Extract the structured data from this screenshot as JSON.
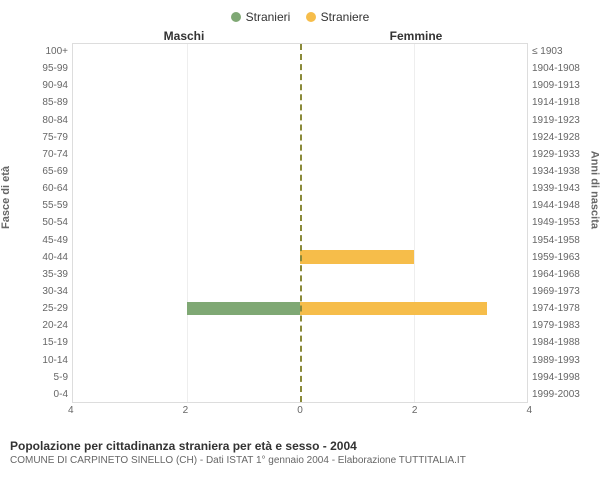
{
  "legend": {
    "male": {
      "label": "Stranieri",
      "color": "#7fa874"
    },
    "female": {
      "label": "Straniere",
      "color": "#f6bd4a"
    }
  },
  "columns": {
    "left": "Maschi",
    "right": "Femmine"
  },
  "axis_y_left_label": "Fasce di età",
  "axis_y_right_label": "Anni di nascita",
  "y_left_ticks": [
    "100+",
    "95-99",
    "90-94",
    "85-89",
    "80-84",
    "75-79",
    "70-74",
    "65-69",
    "60-64",
    "55-59",
    "50-54",
    "45-49",
    "40-44",
    "35-39",
    "30-34",
    "25-29",
    "20-24",
    "15-19",
    "10-14",
    "5-9",
    "0-4"
  ],
  "y_right_ticks": [
    "≤ 1903",
    "1904-1908",
    "1909-1913",
    "1914-1918",
    "1919-1923",
    "1924-1928",
    "1929-1933",
    "1934-1938",
    "1939-1943",
    "1944-1948",
    "1949-1953",
    "1954-1958",
    "1959-1963",
    "1964-1968",
    "1969-1973",
    "1974-1978",
    "1979-1983",
    "1984-1988",
    "1989-1993",
    "1994-1998",
    "1999-2003"
  ],
  "x_ticks": [
    "4",
    "2",
    "0",
    "2",
    "4"
  ],
  "x_max": 4,
  "chart": {
    "type": "population-pyramid",
    "background_color": "#ffffff",
    "grid_color": "#eeeeee",
    "border_color": "#dddddd",
    "center_line_color": "#8a8a3a",
    "tick_color": "#666666",
    "tick_fontsize": 10,
    "title_fontsize": 12,
    "bar_height_pct": 78,
    "rows": [
      {
        "age": "100+",
        "m": 0,
        "f": 0
      },
      {
        "age": "95-99",
        "m": 0,
        "f": 0
      },
      {
        "age": "90-94",
        "m": 0,
        "f": 0
      },
      {
        "age": "85-89",
        "m": 0,
        "f": 0
      },
      {
        "age": "80-84",
        "m": 0,
        "f": 0
      },
      {
        "age": "75-79",
        "m": 0,
        "f": 0
      },
      {
        "age": "70-74",
        "m": 0,
        "f": 0
      },
      {
        "age": "65-69",
        "m": 0,
        "f": 0
      },
      {
        "age": "60-64",
        "m": 0,
        "f": 0
      },
      {
        "age": "55-59",
        "m": 0,
        "f": 0
      },
      {
        "age": "50-54",
        "m": 0,
        "f": 0
      },
      {
        "age": "45-49",
        "m": 0,
        "f": 0
      },
      {
        "age": "40-44",
        "m": 0,
        "f": 2
      },
      {
        "age": "35-39",
        "m": 0,
        "f": 0
      },
      {
        "age": "30-34",
        "m": 0,
        "f": 0
      },
      {
        "age": "25-29",
        "m": 2,
        "f": 3.3
      },
      {
        "age": "20-24",
        "m": 0,
        "f": 0
      },
      {
        "age": "15-19",
        "m": 0,
        "f": 0
      },
      {
        "age": "10-14",
        "m": 0,
        "f": 0
      },
      {
        "age": "5-9",
        "m": 0,
        "f": 0
      },
      {
        "age": "0-4",
        "m": 0,
        "f": 0
      }
    ]
  },
  "caption": {
    "title": "Popolazione per cittadinanza straniera per età e sesso - 2004",
    "subtitle": "COMUNE DI CARPINETO SINELLO (CH) - Dati ISTAT 1° gennaio 2004 - Elaborazione TUTTITALIA.IT"
  }
}
